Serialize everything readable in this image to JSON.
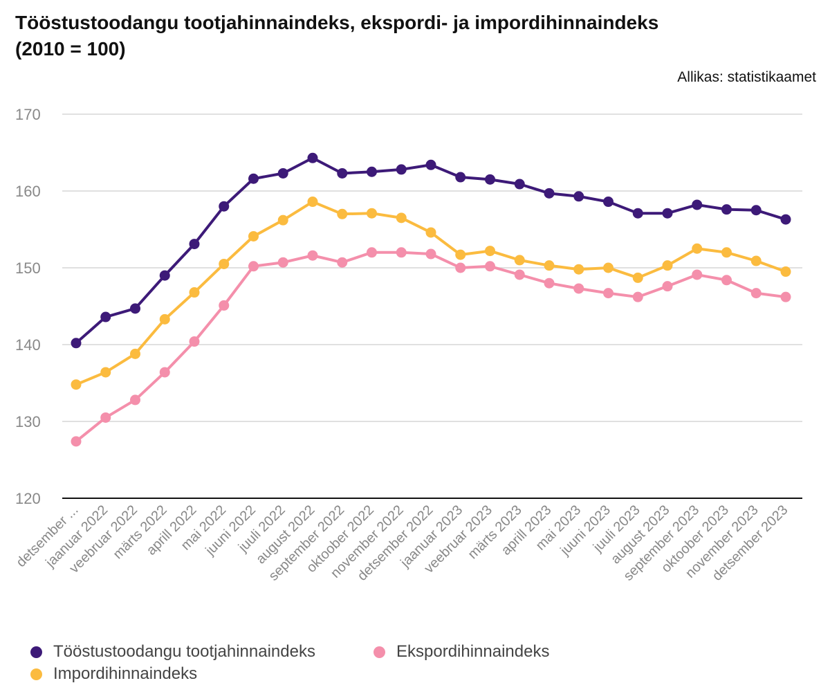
{
  "title_line1": "Tööstustoodangu tootjahinnaindeks, ekspordi- ja impordihinnaindeks",
  "title_line2": "(2010 = 100)",
  "source": "Allikas: statistikaamet",
  "chart_data": {
    "type": "line",
    "ylim": [
      120,
      170
    ],
    "yticks": [
      120,
      130,
      140,
      150,
      160,
      170
    ],
    "grid": true,
    "legend_position": "bottom-left",
    "categories": [
      "detsember ...",
      "jaanuar 2022",
      "veebruar 2022",
      "märts 2022",
      "aprill 2022",
      "mai 2022",
      "juuni 2022",
      "juuli 2022",
      "august 2022",
      "september 2022",
      "oktoober 2022",
      "november 2022",
      "detsember 2022",
      "jaanuar 2023",
      "veebruar 2023",
      "märts 2023",
      "aprill 2023",
      "mai 2023",
      "juuni 2023",
      "juuli 2023",
      "august 2023",
      "september 2023",
      "oktoober 2023",
      "november 2023",
      "detsember 2023"
    ],
    "series": [
      {
        "name": "Tööstustoodangu tootjahinnaindeks",
        "color": "#3d1a78",
        "values": [
          140.2,
          143.6,
          144.7,
          149.0,
          153.1,
          158.0,
          161.6,
          162.3,
          164.3,
          162.3,
          162.5,
          162.8,
          163.4,
          161.8,
          161.5,
          160.9,
          159.7,
          159.3,
          158.6,
          157.1,
          157.1,
          158.2,
          157.6,
          157.5,
          156.3
        ]
      },
      {
        "name": "Ekspordihinnaindeks",
        "color": "#f48fab",
        "values": [
          127.4,
          130.5,
          132.8,
          136.4,
          140.4,
          145.1,
          150.2,
          150.7,
          151.6,
          150.7,
          152.0,
          152.0,
          151.8,
          150.0,
          150.2,
          149.1,
          148.0,
          147.3,
          146.7,
          146.2,
          147.6,
          149.1,
          148.4,
          146.7,
          146.2
        ]
      },
      {
        "name": "Impordihinnaindeks",
        "color": "#fbbb3f",
        "values": [
          134.8,
          136.4,
          138.8,
          143.3,
          146.8,
          150.5,
          154.1,
          156.2,
          158.6,
          157.0,
          157.1,
          156.5,
          154.6,
          151.7,
          152.2,
          151.0,
          150.3,
          149.8,
          150.0,
          148.7,
          150.3,
          152.5,
          152.0,
          150.9,
          149.5
        ]
      }
    ]
  }
}
